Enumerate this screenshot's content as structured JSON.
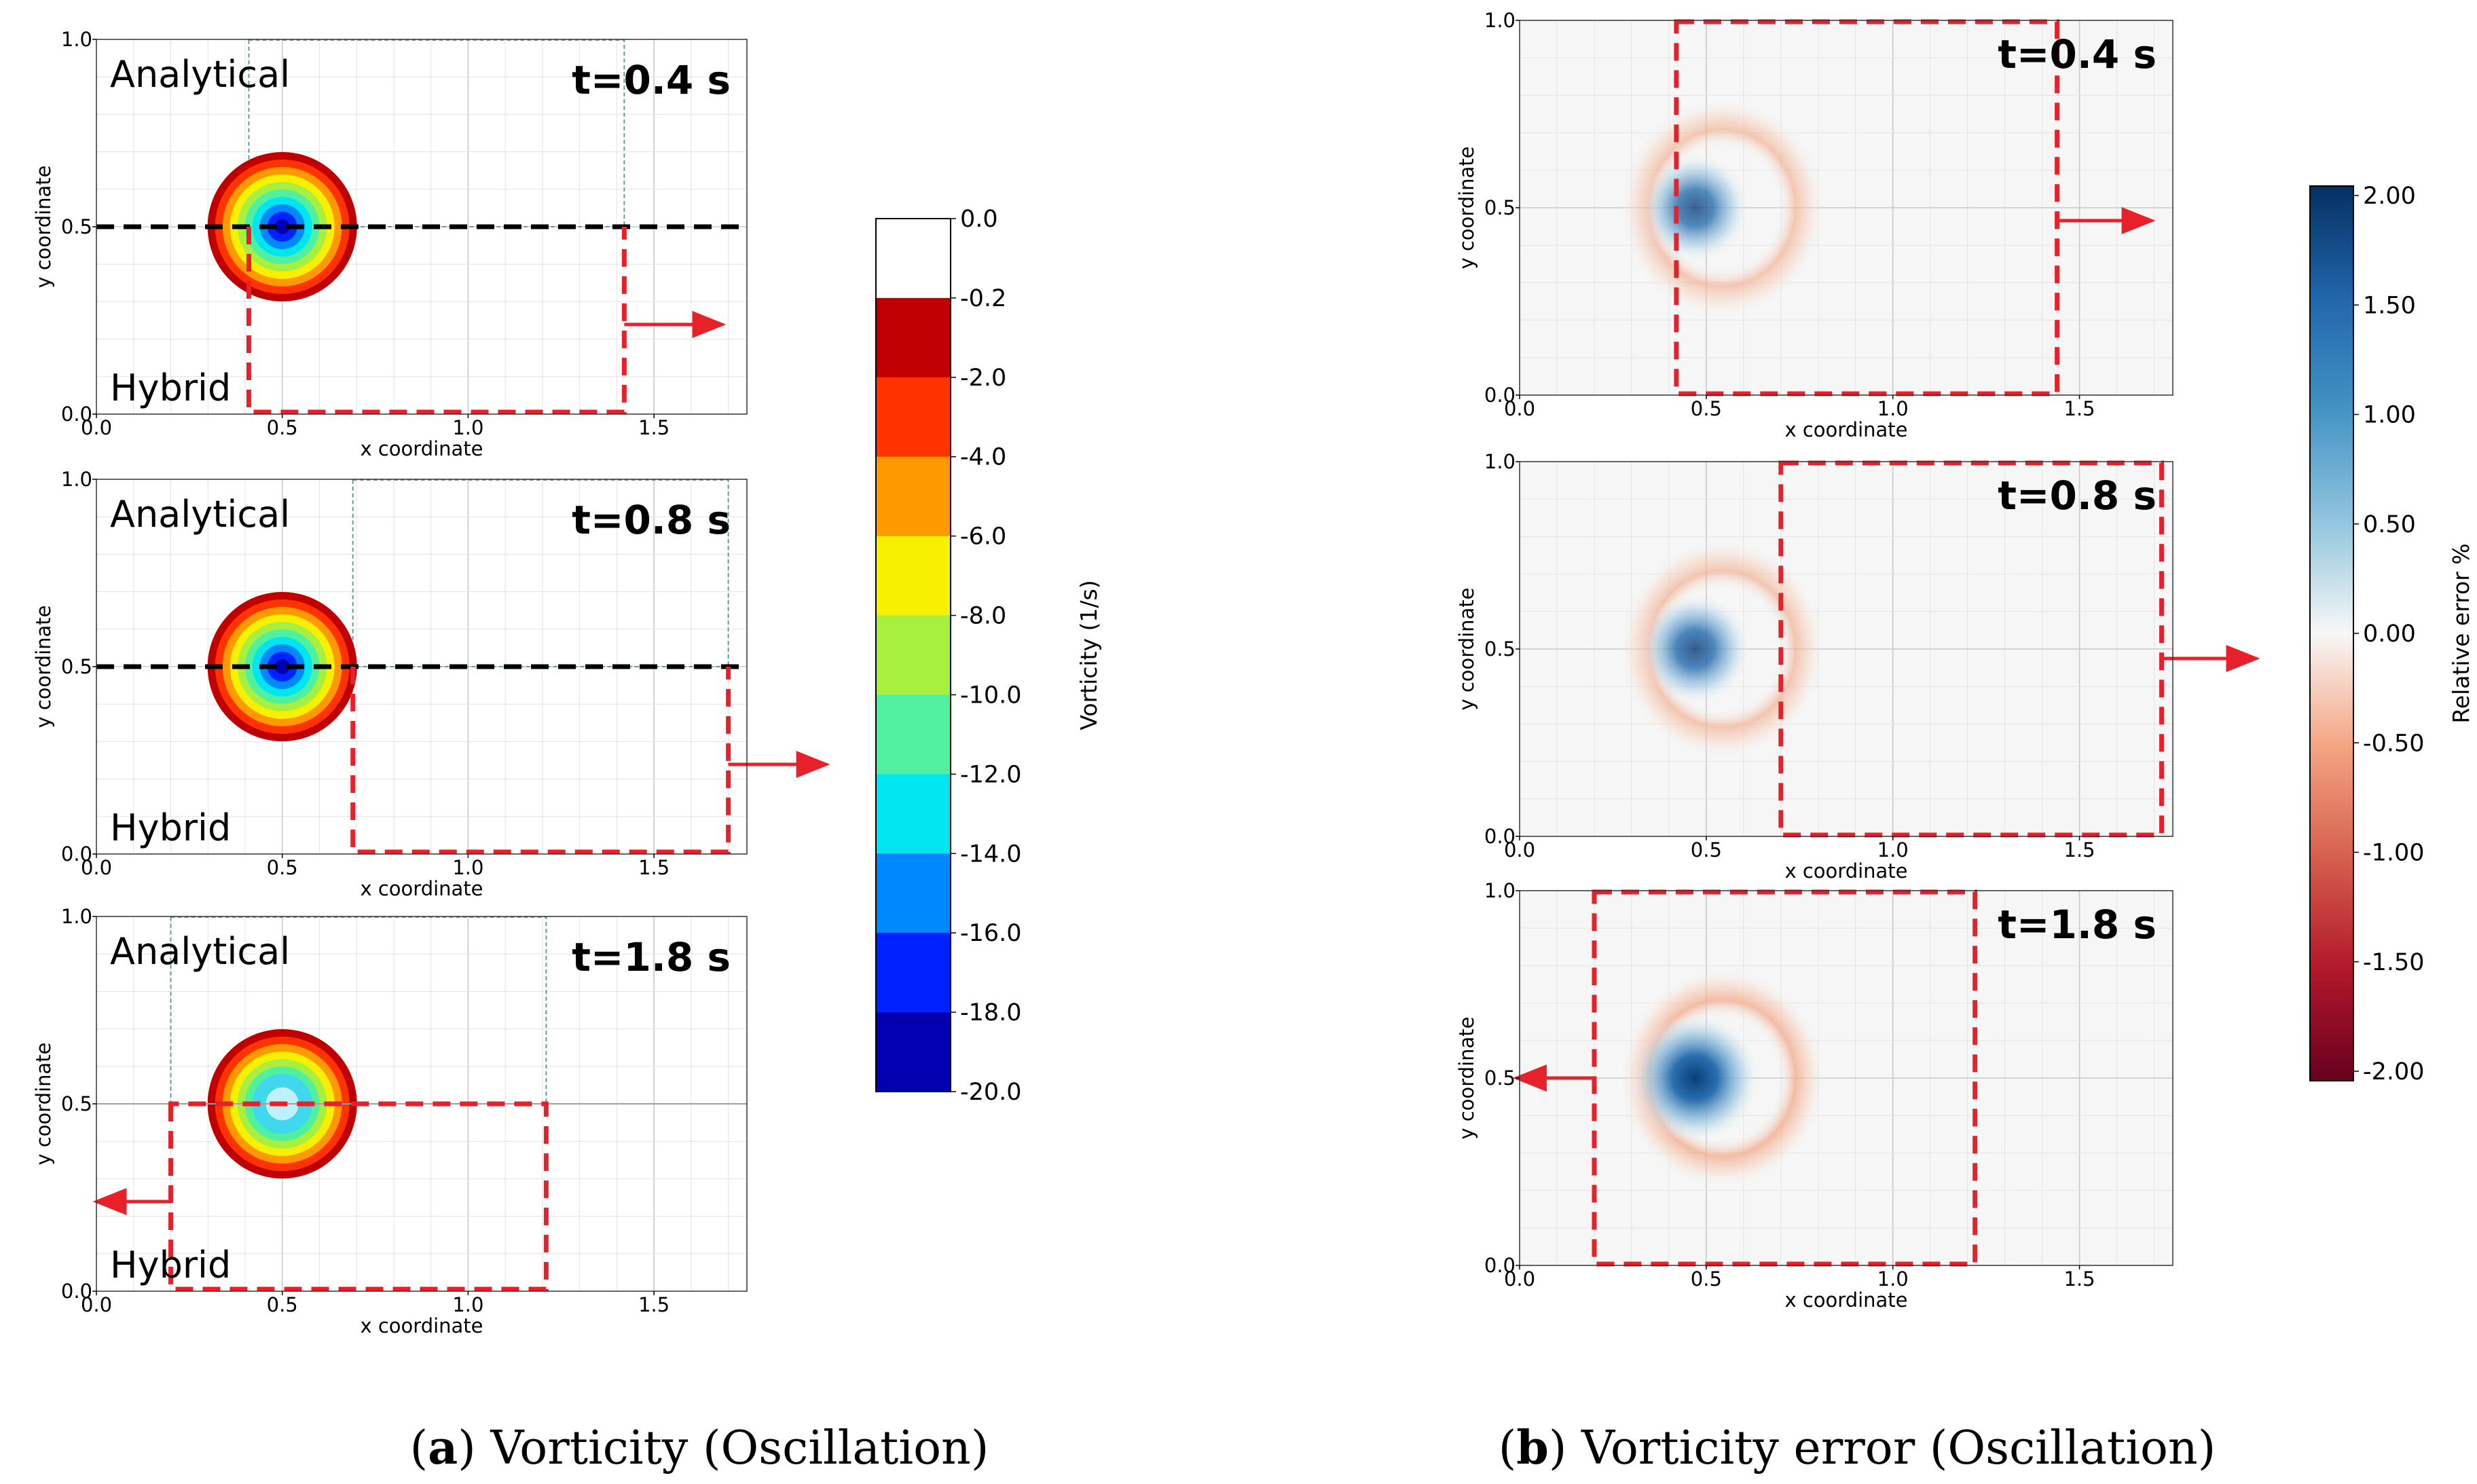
{
  "panel_a": {
    "caption_letter": "a",
    "caption_text": "Vorticity (Oscillation)",
    "analytical_label": "Analytical",
    "hybrid_label": "Hybrid",
    "subplots": [
      {
        "time_label": "t=0.4 s",
        "window_x": [
          0.41,
          1.42
        ],
        "interface_y": 0.5,
        "arrow": "right"
      },
      {
        "time_label": "t=0.8 s",
        "window_x": [
          0.69,
          1.7
        ],
        "interface_y": 0.5,
        "arrow": "right"
      },
      {
        "time_label": "t=1.8 s",
        "window_x": [
          0.2,
          1.21
        ],
        "interface_y": 0.5,
        "arrow": "left"
      }
    ],
    "colorbar": {
      "label": "Vorticity (1/s)",
      "ticks": [
        "0.0",
        "-0.2",
        "-2.0",
        "-4.0",
        "-6.0",
        "-8.0",
        "-10.0",
        "-12.0",
        "-14.0",
        "-16.0",
        "-18.0",
        "-20.0"
      ],
      "colors": [
        "#ffffff",
        "#c00000",
        "#ff3300",
        "#ff9900",
        "#f7f000",
        "#a8f040",
        "#50f0a0",
        "#00e6f0",
        "#0088ff",
        "#0022ff",
        "#0000b0"
      ]
    },
    "vortex": {
      "center": [
        0.5,
        0.5
      ],
      "radius": 0.2
    }
  },
  "panel_b": {
    "caption_letter": "b",
    "caption_text": "Vorticity error (Oscillation)",
    "subplots": [
      {
        "time_label": "t=0.4 s",
        "window_x": [
          0.42,
          1.44
        ],
        "arrow": "right",
        "strength": 0.6
      },
      {
        "time_label": "t=0.8 s",
        "window_x": [
          0.7,
          1.72
        ],
        "arrow": "right",
        "strength": 0.65
      },
      {
        "time_label": "t=1.8 s",
        "window_x": [
          0.2,
          1.22
        ],
        "arrow": "left",
        "strength": 1.0
      }
    ],
    "colorbar": {
      "label": "Relative error %",
      "ticks": [
        "2.00",
        "1.50",
        "1.00",
        "0.50",
        "0.00",
        "-0.50",
        "-1.00",
        "-1.50",
        "-2.00"
      ]
    }
  },
  "axes": {
    "xlabel": "x coordinate",
    "ylabel": "y coordinate",
    "xlim": [
      0,
      1.75
    ],
    "ylim": [
      0,
      1.0
    ],
    "xticks": [
      "0.0",
      "0.5",
      "1.0",
      "1.5"
    ],
    "yticks": [
      "0.0",
      "0.5",
      "1.0"
    ]
  },
  "colors": {
    "window": "#e8202a",
    "interface_black": "#000000",
    "analytical_box": "#5f9ea0",
    "plot_bg_b": "#f5f6f5",
    "grid": "#e3e3e3"
  },
  "chart_data": [
    {
      "type": "heatmap",
      "title": "Vorticity (Oscillation)",
      "xlabel": "x coordinate",
      "ylabel": "y coordinate",
      "xlim": [
        0,
        1.75
      ],
      "ylim": [
        0,
        1.0
      ],
      "times_s": [
        0.4,
        0.8,
        1.8
      ],
      "colorbar_label": "Vorticity (1/s)",
      "colorbar_range": [
        -20.0,
        0.0
      ],
      "vortex_center": [
        0.5,
        0.5
      ]
    },
    {
      "type": "heatmap",
      "title": "Vorticity error (Oscillation)",
      "xlabel": "x coordinate",
      "ylabel": "y coordinate",
      "xlim": [
        0,
        1.75
      ],
      "ylim": [
        0,
        1.0
      ],
      "times_s": [
        0.4,
        0.8,
        1.8
      ],
      "colorbar_label": "Relative error %",
      "colorbar_range": [
        -2.0,
        2.0
      ],
      "error_center": [
        0.47,
        0.5
      ]
    }
  ]
}
